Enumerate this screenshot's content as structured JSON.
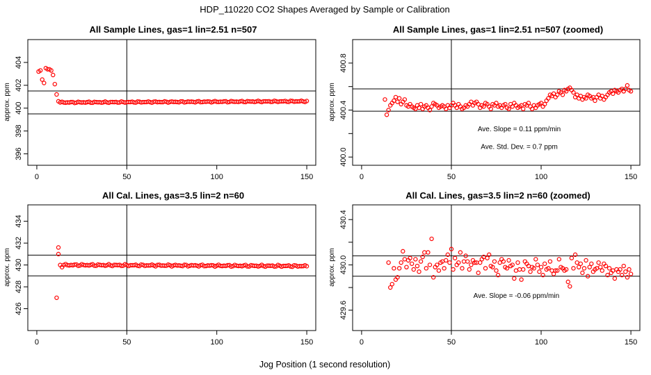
{
  "figure": {
    "title": "HDP_110220  CO2 Shapes Averaged by Sample or Calibration",
    "xlabel": "Jog Position (1 second resolution)"
  },
  "chart_data": [
    {
      "type": "scatter",
      "title": "All Sample Lines, gas=1 lin=2.51 n=507",
      "xlabel": "",
      "ylabel": "approx. ppm",
      "xlim": [
        -5,
        155
      ],
      "ylim": [
        395,
        406
      ],
      "xticks": [
        0,
        50,
        100,
        150
      ],
      "yticks": [
        396,
        398,
        400,
        402,
        404
      ],
      "hlines": [
        401.5,
        399.5
      ],
      "vline": 50,
      "marker_color": "#ff0000",
      "annotations": [],
      "series": [
        {
          "x": [
            1,
            2,
            3,
            4,
            5,
            6,
            7,
            8,
            9,
            10,
            11,
            12
          ],
          "values": [
            403.2,
            403.3,
            402.5,
            402.2,
            403.5,
            403.4,
            403.4,
            403.3,
            402.9,
            402.1,
            401.2,
            400.6
          ]
        },
        {
          "x_start": 13,
          "x_end": 150,
          "start": 400.5,
          "end": 400.6,
          "wiggle": 0.06
        }
      ]
    },
    {
      "type": "scatter",
      "title": "All Sample Lines, gas=1 lin=2.51 n=507 (zoomed)",
      "xlabel": "",
      "ylabel": "approx. ppm",
      "xlim": [
        -5,
        155
      ],
      "ylim": [
        399.93,
        401.0
      ],
      "xticks": [
        0,
        50,
        100,
        150
      ],
      "yticks": [
        400.0,
        400.2,
        400.4,
        400.6,
        400.8
      ],
      "ytick_labels": [
        "400.0",
        "",
        "400.4",
        "",
        "400.8"
      ],
      "hlines": [
        400.58,
        400.39
      ],
      "vline": 50,
      "marker_color": "#ff0000",
      "annotations": [
        "Ave. Slope =  0.11  ppm/min",
        "Ave. Std. Dev. =  0.7  ppm"
      ],
      "series": [
        {
          "x_start": 13,
          "x_end": 150,
          "values": [
            400.49,
            400.36,
            400.4,
            400.44,
            400.46,
            400.48,
            400.51,
            400.47,
            400.5,
            400.45,
            400.47,
            400.49,
            400.44,
            400.43,
            400.45,
            400.43,
            400.42,
            400.41,
            400.44,
            400.42,
            400.45,
            400.41,
            400.43,
            400.44,
            400.42,
            400.4,
            400.43,
            400.46,
            400.45,
            400.44,
            400.42,
            400.43,
            400.44,
            400.43,
            400.41,
            400.44,
            400.42,
            400.44,
            400.46,
            400.44,
            400.42,
            400.45,
            400.43,
            400.41,
            400.42,
            400.44,
            400.43,
            400.45,
            400.47,
            400.44,
            400.46,
            400.47,
            400.45,
            400.42,
            400.44,
            400.43,
            400.46,
            400.45,
            400.43,
            400.41,
            400.45,
            400.44,
            400.46,
            400.43,
            400.44,
            400.42,
            400.44,
            400.45,
            400.42,
            400.41,
            400.45,
            400.43,
            400.46,
            400.44,
            400.42,
            400.43,
            400.44,
            400.41,
            400.45,
            400.44,
            400.46,
            400.43,
            400.41,
            400.44,
            400.42,
            400.44,
            400.45,
            400.46,
            400.43,
            400.45,
            400.48,
            400.5,
            400.53,
            400.52,
            400.54,
            400.51,
            400.53,
            400.56,
            400.55,
            400.53,
            400.57,
            400.56,
            400.58,
            400.59,
            400.57,
            400.55,
            400.51,
            400.53,
            400.5,
            400.52,
            400.49,
            400.51,
            400.5,
            400.53,
            400.52,
            400.5,
            400.51,
            400.48,
            400.51,
            400.53,
            400.5,
            400.52,
            400.49,
            400.51,
            400.53,
            400.55,
            400.56,
            400.54,
            400.57,
            400.56,
            400.55,
            400.57,
            400.58,
            400.56,
            400.58,
            400.61,
            400.57,
            400.56
          ]
        }
      ]
    },
    {
      "type": "scatter",
      "title": "All Cal. Lines, gas=3.5 lin=2 n=60",
      "xlabel": "",
      "ylabel": "approx. ppm",
      "xlim": [
        -5,
        155
      ],
      "ylim": [
        424,
        435.5
      ],
      "xticks": [
        0,
        50,
        100,
        150
      ],
      "yticks": [
        426,
        428,
        430,
        432,
        434
      ],
      "hlines": [
        430.9,
        429.0
      ],
      "vline": 50,
      "marker_color": "#ff0000",
      "annotations": [],
      "series": [
        {
          "x": [
            11,
            12,
            12,
            13,
            14
          ],
          "values": [
            427.0,
            431.6,
            431.0,
            430.0,
            429.8
          ]
        },
        {
          "x_start": 15,
          "x_end": 150,
          "start": 430.0,
          "end": 429.9,
          "wiggle": 0.09
        }
      ]
    },
    {
      "type": "scatter",
      "title": "All Cal. Lines, gas=3.5 lin=2 n=60 (zoomed)",
      "xlabel": "",
      "ylabel": "approx. ppm",
      "xlim": [
        -5,
        155
      ],
      "ylim": [
        429.42,
        430.53
      ],
      "xticks": [
        0,
        50,
        100,
        150
      ],
      "yticks": [
        429.6,
        429.8,
        430.0,
        430.2,
        430.4
      ],
      "ytick_labels": [
        "429.6",
        "",
        "430.0",
        "",
        "430.4"
      ],
      "hlines": [
        430.08,
        429.9
      ],
      "vline": 50,
      "marker_color": "#ff0000",
      "annotations": [
        "Ave. Slope =  -0.06  ppm/min"
      ],
      "series": [
        {
          "x_start": 15,
          "x_end": 150,
          "values": [
            430.02,
            429.8,
            429.83,
            429.97,
            429.87,
            429.89,
            429.97,
            430.02,
            430.12,
            430.05,
            429.98,
            430.04,
            430.06,
            430.01,
            429.96,
            430.05,
            429.99,
            429.94,
            430.03,
            430.07,
            430.11,
            429.97,
            430.11,
            430.0,
            430.23,
            429.89,
            429.98,
            430.0,
            429.95,
            430.02,
            430.03,
            429.97,
            430.04,
            430.09,
            430.02,
            430.14,
            429.96,
            430.06,
            430.0,
            430.02,
            430.11,
            429.97,
            430.03,
            430.08,
            430.03,
            429.96,
            430.0,
            430.04,
            430.02,
            430.02,
            429.93,
            430.02,
            430.05,
            430.07,
            429.97,
            430.06,
            430.09,
            429.99,
            429.98,
            430.03,
            429.95,
            429.91,
            430.02,
            430.05,
            430.03,
            429.98,
            429.97,
            430.04,
            429.99,
            430.0,
            429.88,
            429.95,
            430.02,
            429.96,
            429.87,
            429.96,
            430.03,
            430.01,
            429.99,
            429.94,
            429.98,
            429.97,
            430.05,
            430.0,
            429.94,
            429.98,
            429.91,
            430.01,
            429.96,
            429.97,
            430.03,
            429.95,
            429.92,
            429.95,
            429.95,
            430.05,
            429.98,
            429.97,
            429.95,
            429.96,
            429.85,
            429.81,
            430.06,
            429.97,
            430.09,
            430.02,
            429.98,
            430.01,
            429.93,
            429.97,
            430.04,
            429.9,
            429.98,
            430.01,
            429.94,
            429.96,
            429.97,
            430.02,
            429.98,
            429.95,
            430.01,
            429.99,
            429.91,
            429.97,
            429.93,
            429.95,
            429.88,
            429.96,
            429.94,
            429.96,
            429.91,
            429.99,
            429.94,
            429.89,
            429.96,
            429.92
          ]
        }
      ]
    }
  ]
}
